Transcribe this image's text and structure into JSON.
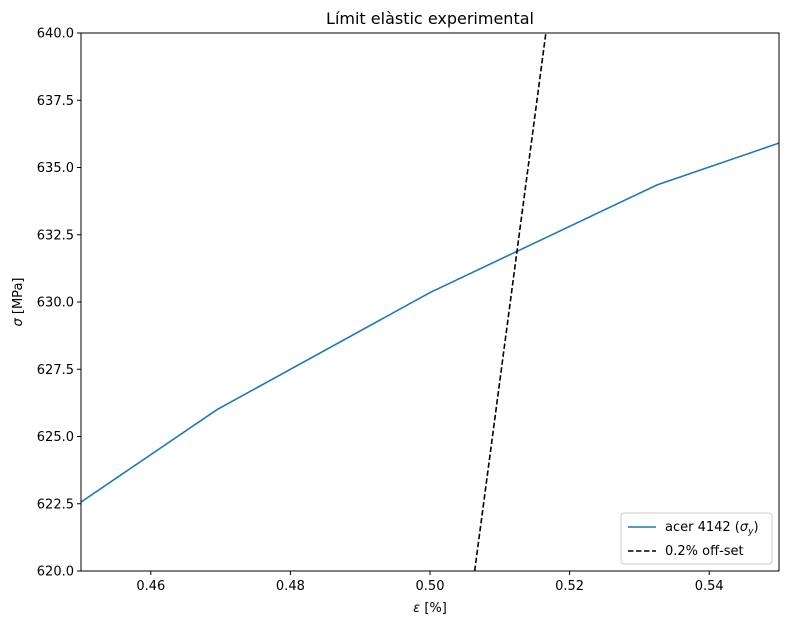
{
  "chart_data": {
    "type": "line",
    "title": "Límit elàstic experimental",
    "xlabel": "ε [%]",
    "ylabel": "σ [MPa]",
    "xlim": [
      0.45,
      0.55
    ],
    "ylim": [
      620.0,
      640.0
    ],
    "xticks": [
      0.46,
      0.48,
      0.5,
      0.52,
      0.54
    ],
    "xtick_labels": [
      "0.46",
      "0.48",
      "0.50",
      "0.52",
      "0.54"
    ],
    "yticks": [
      620.0,
      622.5,
      625.0,
      627.5,
      630.0,
      632.5,
      635.0,
      637.5,
      640.0
    ],
    "ytick_labels": [
      "620.0",
      "622.5",
      "625.0",
      "627.5",
      "630.0",
      "632.5",
      "635.0",
      "637.5",
      "640.0"
    ],
    "grid": false,
    "legend_position": "bottom-right",
    "series": [
      {
        "name": "acer 4142 (σy)",
        "style": "solid",
        "color": "#1f77b4",
        "x": [
          0.44,
          0.4695,
          0.5,
          0.5325,
          0.56
        ],
        "y": [
          620.8,
          626.0,
          630.35,
          634.35,
          636.8
        ]
      },
      {
        "name": "0.2% off-set",
        "style": "dashed",
        "color": "#000000",
        "x": [
          0.5064,
          0.5166
        ],
        "y": [
          620.0,
          640.0
        ]
      }
    ]
  }
}
